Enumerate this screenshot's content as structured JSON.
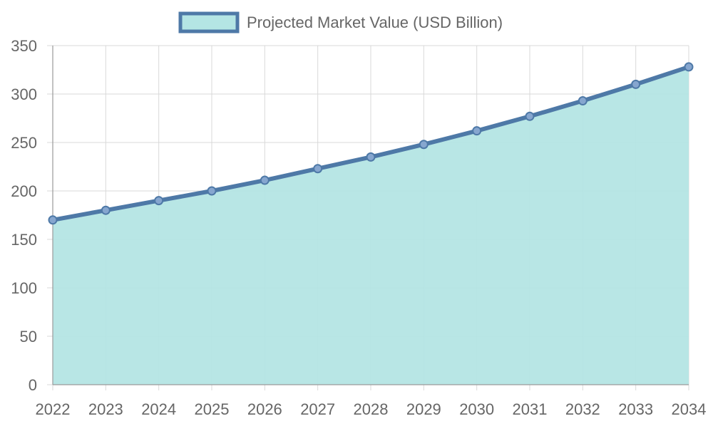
{
  "chart_data": {
    "type": "area",
    "categories": [
      "2022",
      "2023",
      "2024",
      "2025",
      "2026",
      "2027",
      "2028",
      "2029",
      "2030",
      "2031",
      "2032",
      "2033",
      "2034"
    ],
    "series": [
      {
        "name": "Projected Market Value (USD Billion)",
        "values": [
          170,
          180,
          190,
          200,
          211,
          223,
          235,
          248,
          262,
          277,
          293,
          310,
          328
        ]
      }
    ],
    "ylim": [
      0,
      350
    ],
    "yticks": [
      0,
      50,
      100,
      150,
      200,
      250,
      300,
      350
    ],
    "grid": true,
    "legend_position": "top-center",
    "colors": {
      "line": "#4e79a7",
      "fill": "#b4e5e4",
      "point_fill": "#86a6cf"
    }
  }
}
